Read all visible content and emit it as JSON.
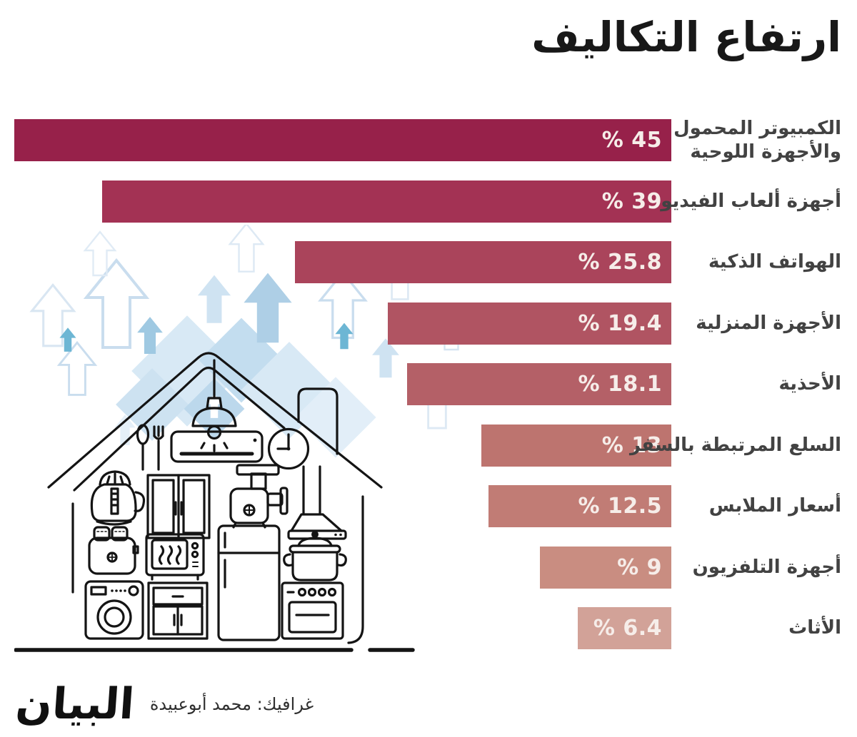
{
  "title": "ارتفاع التكاليف",
  "chart_data": {
    "type": "bar",
    "orientation": "horizontal_rtl",
    "title": "ارتفاع التكاليف",
    "unit": "%",
    "xlim": [
      0,
      45
    ],
    "grid": false,
    "legend": false,
    "categories": [
      "الكمبيوتر المحمول\nوالأجهزة اللوحية",
      "أجهزة ألعاب الفيديو",
      "الهواتف الذكية",
      "الأجهزة المنزلية",
      "الأحذية",
      "السلع المرتبطة بالسفر",
      "أسعار الملابس",
      "أجهزة التلفزيون",
      "الأثاث"
    ],
    "values": [
      45,
      39,
      25.8,
      19.4,
      18.1,
      13,
      12.5,
      9,
      6.4
    ],
    "value_labels": [
      "% 45",
      "% 39",
      "% 25.8",
      "% 19.4",
      "% 18.1",
      "% 13",
      "% 12.5",
      "% 9",
      "% 6.4"
    ],
    "bar_colors": [
      "#97214A",
      "#A33254",
      "#AA445B",
      "#B05462",
      "#B46067",
      "#BD746F",
      "#C17C75",
      "#C98D81",
      "#D2A298"
    ]
  },
  "colors": {
    "background": "#ffffff",
    "title_text": "#181818",
    "category_text": "#424242",
    "value_text": "#F6EDE9",
    "line_art": "#141414",
    "arrow_outline": "#c9ddee",
    "arrow_fill_light": "#d9e9f6",
    "arrow_fill_mid": "#aecfe6",
    "arrow_fill_teal": "#6db6d4",
    "diamond_fill": "#d8e9f5"
  },
  "illustration": {
    "name": "house-with-appliances",
    "items": [
      "pendant-lamp",
      "spoon",
      "fork",
      "air-conditioner",
      "wall-clock",
      "juicer",
      "cupboard",
      "meat-grinder",
      "range-hood",
      "toaster",
      "microwave",
      "refrigerator",
      "cooking-pot",
      "washing-machine",
      "drawer-cabinet",
      "oven"
    ]
  },
  "footer": {
    "credit": "غرافيك: محمد أبوعبيدة",
    "logo": "البيان"
  }
}
